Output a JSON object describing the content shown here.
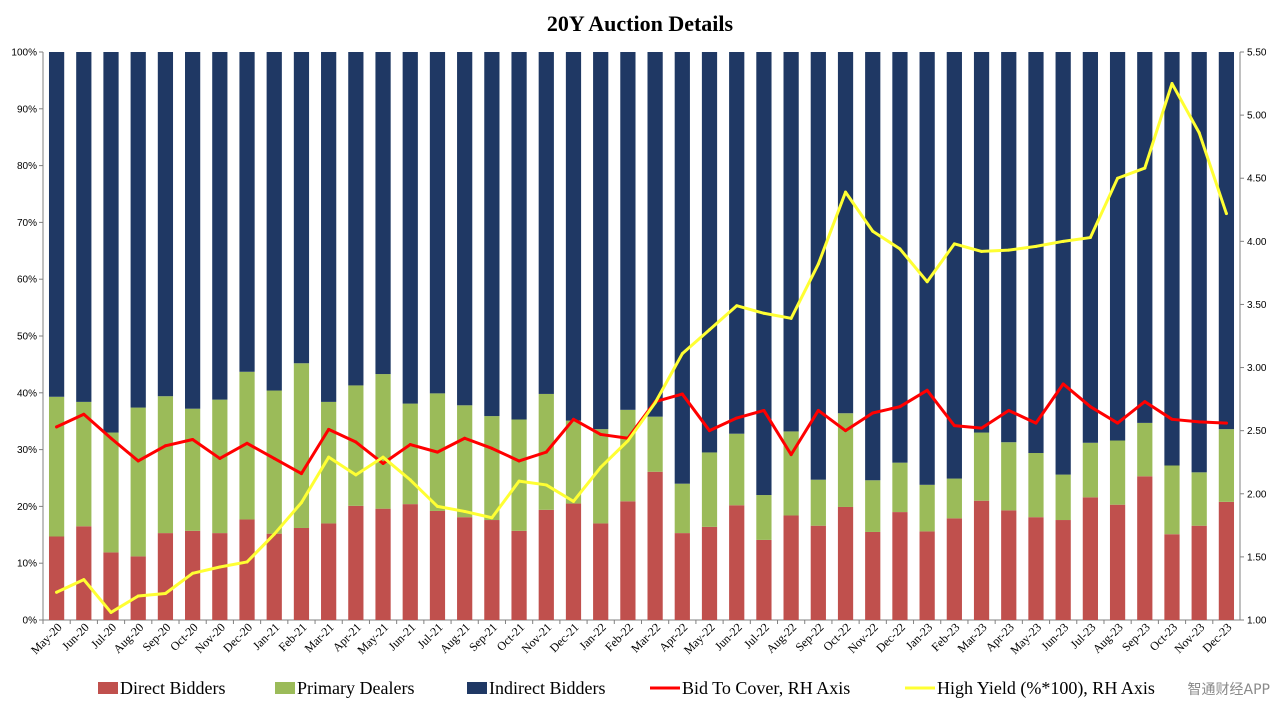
{
  "chart_data": {
    "type": "bar",
    "stacked": true,
    "title": "20Y Auction Details",
    "categories": [
      "May-20",
      "Jun-20",
      "Jul-20",
      "Aug-20",
      "Sep-20",
      "Oct-20",
      "Nov-20",
      "Dec-20",
      "Jan-21",
      "Feb-21",
      "Mar-21",
      "Apr-21",
      "May-21",
      "Jun-21",
      "Jul-21",
      "Aug-21",
      "Sep-21",
      "Oct-21",
      "Nov-21",
      "Dec-21",
      "Jan-22",
      "Feb-22",
      "Mar-22",
      "Apr-22",
      "May-22",
      "Jun-22",
      "Jul-22",
      "Aug-22",
      "Sep-22",
      "Oct-22",
      "Nov-22",
      "Dec-22",
      "Jan-23",
      "Feb-23",
      "Mar-23",
      "Apr-23",
      "May-23",
      "Jun-23",
      "Jul-23",
      "Aug-23",
      "Sep-23",
      "Oct-23",
      "Nov-23",
      "Dec-23"
    ],
    "series": [
      {
        "name": "Direct Bidders",
        "axis": "left",
        "color": "#c0504d",
        "values": [
          14.7,
          16.5,
          11.9,
          11.2,
          15.3,
          15.7,
          15.3,
          17.7,
          15.2,
          16.2,
          17.0,
          20.1,
          19.6,
          20.4,
          19.2,
          18.1,
          17.6,
          15.7,
          19.4,
          20.5,
          17.0,
          20.9,
          26.1,
          15.3,
          16.4,
          20.2,
          14.1,
          18.4,
          16.6,
          19.9,
          15.5,
          19.0,
          15.6,
          17.9,
          21.0,
          19.3,
          18.1,
          17.6,
          21.6,
          20.3,
          25.3,
          15.1,
          16.6,
          20.8
        ]
      },
      {
        "name": "Primary Dealers",
        "axis": "left",
        "color": "#9bbb59",
        "values": [
          24.6,
          21.9,
          21.1,
          26.2,
          24.1,
          21.5,
          23.5,
          26.0,
          25.2,
          29.0,
          21.4,
          21.2,
          23.7,
          17.7,
          20.7,
          19.7,
          18.3,
          19.6,
          20.4,
          14.6,
          16.6,
          16.1,
          9.7,
          8.7,
          13.1,
          12.6,
          7.9,
          14.8,
          8.1,
          16.5,
          9.1,
          8.7,
          8.2,
          7.0,
          12.0,
          12.0,
          11.3,
          8.0,
          9.6,
          11.3,
          9.4,
          12.1,
          9.4,
          12.8
        ]
      },
      {
        "name": "Indirect Bidders",
        "axis": "left",
        "color": "#1f3864",
        "values": [
          60.7,
          61.6,
          67.0,
          62.6,
          60.6,
          62.8,
          61.2,
          56.3,
          59.6,
          54.8,
          61.6,
          58.7,
          56.7,
          61.9,
          60.1,
          62.2,
          64.1,
          64.7,
          60.2,
          64.9,
          66.4,
          63.0,
          64.2,
          76.0,
          70.5,
          67.2,
          78.0,
          66.8,
          75.3,
          63.6,
          75.4,
          72.3,
          76.2,
          75.1,
          67.0,
          68.7,
          70.6,
          74.4,
          68.8,
          68.4,
          65.3,
          72.8,
          74.0,
          66.4
        ]
      },
      {
        "name": "Bid To Cover, RH Axis",
        "axis": "right",
        "color": "#ff0000",
        "values": [
          2.53,
          2.63,
          2.44,
          2.26,
          2.38,
          2.43,
          2.28,
          2.4,
          2.28,
          2.16,
          2.51,
          2.41,
          2.24,
          2.39,
          2.33,
          2.44,
          2.36,
          2.26,
          2.33,
          2.59,
          2.47,
          2.44,
          2.73,
          2.79,
          2.5,
          2.6,
          2.66,
          2.31,
          2.66,
          2.5,
          2.64,
          2.69,
          2.82,
          2.54,
          2.52,
          2.66,
          2.56,
          2.87,
          2.69,
          2.56,
          2.73,
          2.59,
          2.57,
          2.56
        ]
      },
      {
        "name": "High Yield (%*100), RH Axis",
        "axis": "right",
        "color": "#ffff33",
        "values": [
          1.22,
          1.32,
          1.06,
          1.19,
          1.21,
          1.37,
          1.42,
          1.46,
          1.68,
          1.93,
          2.29,
          2.15,
          2.29,
          2.11,
          1.9,
          1.86,
          1.81,
          2.1,
          2.07,
          1.94,
          2.21,
          2.42,
          2.72,
          3.11,
          3.3,
          3.49,
          3.43,
          3.39,
          3.82,
          4.39,
          4.08,
          3.94,
          3.68,
          3.98,
          3.92,
          3.93,
          3.96,
          4.0,
          4.03,
          4.5,
          4.58,
          5.25,
          4.86,
          4.22
        ]
      }
    ],
    "y_left": {
      "min": 0,
      "max": 100,
      "ticks": [
        "0%",
        "10%",
        "20%",
        "30%",
        "40%",
        "50%",
        "60%",
        "70%",
        "80%",
        "90%",
        "100%"
      ]
    },
    "y_right": {
      "min": 1.0,
      "max": 5.5,
      "ticks": [
        "1.00",
        "1.50",
        "2.00",
        "2.50",
        "3.00",
        "3.50",
        "4.00",
        "4.50",
        "5.00",
        "5.50"
      ]
    },
    "grid": false,
    "legend_position": "bottom"
  },
  "watermark": "智通财经APP"
}
